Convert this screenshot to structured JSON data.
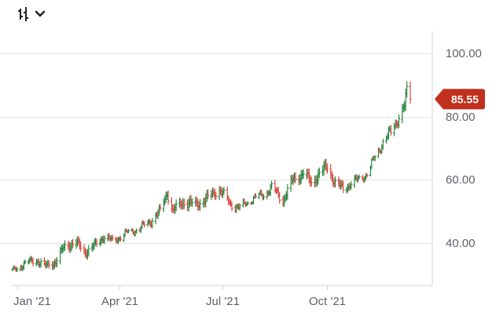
{
  "toolbar": {
    "chart_type_icon": "ohlc-bars-icon",
    "dropdown_icon": "chevron-down-icon"
  },
  "chart_data": {
    "type": "ohlc",
    "x_tick_labels": [
      "Jan '21",
      "Apr '21",
      "Jul '21",
      "Oct '21"
    ],
    "x_tick_dates": [
      "2021-01-01",
      "2021-04-01",
      "2021-07-01",
      "2021-10-01"
    ],
    "y_tick_labels": [
      "100.00",
      "80.00",
      "60.00",
      "40.00"
    ],
    "y_tick_values": [
      100,
      80,
      60,
      40
    ],
    "ylim": [
      26.5,
      107
    ],
    "xlim": [
      "2020-12-28",
      "2021-12-31"
    ],
    "grid": true,
    "last_price": {
      "label": "85.55",
      "value": 85.55,
      "color": "#c0301c"
    },
    "up_color": "#1a7f37",
    "down_color": "#d23f31",
    "anchors": [
      [
        "2020-12-28",
        31
      ],
      [
        "2021-01-08",
        33.5
      ],
      [
        "2021-01-18",
        34.5
      ],
      [
        "2021-01-26",
        32.5
      ],
      [
        "2021-02-04",
        34
      ],
      [
        "2021-02-12",
        39
      ],
      [
        "2021-02-22",
        40
      ],
      [
        "2021-03-02",
        37
      ],
      [
        "2021-03-10",
        39
      ],
      [
        "2021-03-18",
        42
      ],
      [
        "2021-03-26",
        40.5
      ],
      [
        "2021-04-07",
        43
      ],
      [
        "2021-04-19",
        44.5
      ],
      [
        "2021-04-29",
        47
      ],
      [
        "2021-05-07",
        50
      ],
      [
        "2021-05-13",
        56
      ],
      [
        "2021-05-18",
        50
      ],
      [
        "2021-05-27",
        53
      ],
      [
        "2021-06-07",
        52
      ],
      [
        "2021-06-17",
        54
      ],
      [
        "2021-06-28",
        57
      ],
      [
        "2021-07-07",
        52.5
      ],
      [
        "2021-07-16",
        51
      ],
      [
        "2021-07-27",
        54
      ],
      [
        "2021-08-05",
        55
      ],
      [
        "2021-08-13",
        57.5
      ],
      [
        "2021-08-23",
        53.5
      ],
      [
        "2021-09-01",
        60
      ],
      [
        "2021-09-10",
        62
      ],
      [
        "2021-09-17",
        59
      ],
      [
        "2021-09-24",
        62
      ],
      [
        "2021-10-01",
        64
      ],
      [
        "2021-10-08",
        59
      ],
      [
        "2021-10-15",
        57
      ],
      [
        "2021-10-22",
        59
      ],
      [
        "2021-10-29",
        60
      ],
      [
        "2021-11-05",
        62
      ],
      [
        "2021-11-12",
        67
      ],
      [
        "2021-11-19",
        72
      ],
      [
        "2021-11-26",
        75
      ],
      [
        "2021-12-03",
        80
      ],
      [
        "2021-12-08",
        83
      ],
      [
        "2021-12-10",
        88
      ],
      [
        "2021-12-13",
        85.55
      ]
    ]
  }
}
